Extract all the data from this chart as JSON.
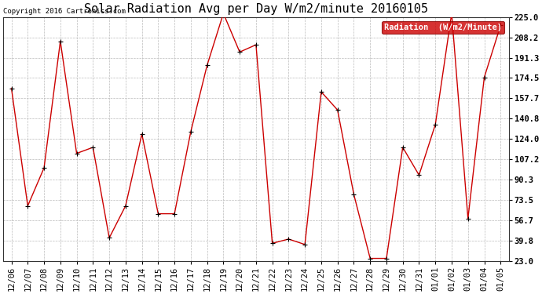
{
  "title": "Solar Radiation Avg per Day W/m2/minute 20160105",
  "copyright": "Copyright 2016 Cartronics.com",
  "legend_label": "Radiation  (W/m2/Minute)",
  "x_labels": [
    "12/06",
    "12/07",
    "12/08",
    "12/09",
    "12/10",
    "12/11",
    "12/12",
    "12/13",
    "12/14",
    "12/15",
    "12/16",
    "12/17",
    "12/18",
    "12/19",
    "12/20",
    "12/21",
    "12/22",
    "12/23",
    "12/24",
    "12/25",
    "12/26",
    "12/27",
    "12/28",
    "12/29",
    "12/30",
    "12/31",
    "01/01",
    "01/02",
    "01/03",
    "01/04",
    "01/05"
  ],
  "y_values": [
    166.0,
    68.5,
    100.0,
    205.0,
    112.0,
    117.0,
    42.0,
    68.5,
    128.0,
    62.0,
    62.0,
    130.0,
    185.0,
    228.0,
    196.0,
    202.0,
    37.5,
    41.0,
    36.5,
    163.0,
    148.0,
    78.0,
    25.0,
    25.0,
    117.0,
    94.0,
    136.0,
    228.0,
    58.0,
    175.0,
    218.0
  ],
  "y_ticks": [
    23.0,
    39.8,
    56.7,
    73.5,
    90.3,
    107.2,
    124.0,
    140.8,
    157.7,
    174.5,
    191.3,
    208.2,
    225.0
  ],
  "y_min": 23.0,
  "y_max": 225.0,
  "line_color": "#cc0000",
  "marker_color": "#000000",
  "bg_color": "#ffffff",
  "grid_color": "#bbbbbb",
  "legend_bg": "#cc0000",
  "legend_text_color": "#ffffff",
  "title_fontsize": 11,
  "copyright_fontsize": 6.5,
  "tick_fontsize": 7.5,
  "legend_fontsize": 7.5
}
